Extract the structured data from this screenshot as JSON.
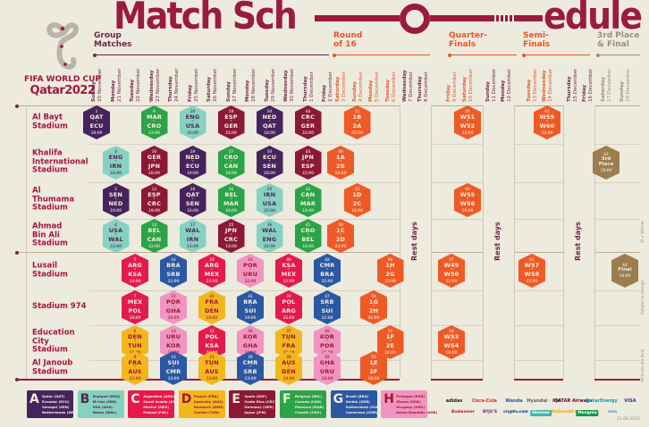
{
  "title": {
    "left": "Match Sch",
    "right": "edule"
  },
  "logo": {
    "line1": "FIFA WORLD CUP",
    "line2": "Qatar2022"
  },
  "phases": [
    {
      "id": "group",
      "lines": "Group\nMatches"
    },
    {
      "id": "r16",
      "lines": "Round\nof 16"
    },
    {
      "id": "qf",
      "lines": "Quarter-\nFinals"
    },
    {
      "id": "sf",
      "lines": "Semi-\nFinals"
    },
    {
      "id": "f3",
      "lines": "3rd Place\n& Final"
    }
  ],
  "columns": [
    {
      "day": "Sunday",
      "date": "20 November",
      "phase": "group"
    },
    {
      "day": "Monday",
      "date": "21 November",
      "phase": "group"
    },
    {
      "day": "Tuesday",
      "date": "22 November",
      "phase": "group"
    },
    {
      "day": "Wednesday",
      "date": "23 November",
      "phase": "group"
    },
    {
      "day": "Thursday",
      "date": "24 November",
      "phase": "group"
    },
    {
      "day": "Friday",
      "date": "25 November",
      "phase": "group"
    },
    {
      "day": "Saturday",
      "date": "26 November",
      "phase": "group"
    },
    {
      "day": "Sunday",
      "date": "27 November",
      "phase": "group"
    },
    {
      "day": "Monday",
      "date": "28 November",
      "phase": "group"
    },
    {
      "day": "Tuesday",
      "date": "29 November",
      "phase": "group"
    },
    {
      "day": "Wednesday",
      "date": "30 November",
      "phase": "group"
    },
    {
      "day": "Thursday",
      "date": "1 December",
      "phase": "group"
    },
    {
      "day": "Friday",
      "date": "2 December",
      "phase": "group"
    },
    {
      "day": "Saturday",
      "date": "3 December",
      "phase": "r16"
    },
    {
      "day": "Sunday",
      "date": "4 December",
      "phase": "r16"
    },
    {
      "day": "Monday",
      "date": "5 December",
      "phase": "r16"
    },
    {
      "day": "Tuesday",
      "date": "6 December",
      "phase": "r16"
    },
    {
      "day": "Wednesday",
      "date": "7 December",
      "phase": "rest"
    },
    {
      "day": "Thursday",
      "date": "8 December",
      "phase": "rest"
    },
    {
      "day": "Friday",
      "date": "9 December",
      "phase": "qf"
    },
    {
      "day": "Saturday",
      "date": "10 December",
      "phase": "qf"
    },
    {
      "day": "Sunday",
      "date": "11 December",
      "phase": "rest"
    },
    {
      "day": "Monday",
      "date": "12 December",
      "phase": "rest"
    },
    {
      "day": "Tuesday",
      "date": "13 December",
      "phase": "sf"
    },
    {
      "day": "Wednesday",
      "date": "14 December",
      "phase": "sf"
    },
    {
      "day": "Thursday",
      "date": "15 December",
      "phase": "rest"
    },
    {
      "day": "Friday",
      "date": "16 December",
      "phase": "rest"
    },
    {
      "day": "Saturday",
      "date": "17 December",
      "phase": "final"
    },
    {
      "day": "Sunday",
      "date": "18 December",
      "phase": "final"
    }
  ],
  "stadiums": [
    {
      "lines": "Al Bayt\nStadium"
    },
    {
      "lines": "Khalifa\nInternational\nStadium"
    },
    {
      "lines": "Al\nThumama\nStadium"
    },
    {
      "lines": "Ahmad\nBin Ali\nStadium"
    },
    {
      "lines": "Lusail\nStadium"
    },
    {
      "lines": "Stadium 974"
    },
    {
      "lines": "Education\nCity\nStadium"
    },
    {
      "lines": "Al Janoub\nStadium"
    }
  ],
  "badge_vs": "v",
  "matches": [
    [
      0,
      1,
      "1",
      "QAT",
      "ECU",
      "A",
      "19:00"
    ],
    [
      0,
      4,
      "9",
      "MAR",
      "CRO",
      "F",
      "13:00"
    ],
    [
      0,
      6,
      "20",
      "ENG",
      "USA",
      "B",
      "22:00"
    ],
    [
      0,
      8,
      "28",
      "ESP",
      "GER",
      "E",
      "22:00"
    ],
    [
      0,
      10,
      "34",
      "NED",
      "QAT",
      "A",
      "18:00"
    ],
    [
      0,
      12,
      "44",
      "CRC",
      "GER",
      "E",
      "22:00"
    ],
    [
      0,
      15,
      "51",
      "1B",
      "2A",
      "K",
      "22:00"
    ],
    [
      0,
      21,
      "59",
      "W51",
      "W52",
      "K",
      "22:00"
    ],
    [
      0,
      25,
      "62",
      "W59",
      "W60",
      "K",
      "22:00"
    ],
    [
      1,
      2,
      "3",
      "ENG",
      "IRN",
      "B",
      "16:00"
    ],
    [
      1,
      4,
      "10",
      "GER",
      "JPN",
      "E",
      "16:00"
    ],
    [
      1,
      6,
      "19",
      "NED",
      "ECU",
      "A",
      "19:00"
    ],
    [
      1,
      8,
      "27",
      "CRO",
      "CAN",
      "F",
      "19:00"
    ],
    [
      1,
      10,
      "33",
      "ECU",
      "SEN",
      "A",
      "18:00"
    ],
    [
      1,
      12,
      "43",
      "JPN",
      "ESP",
      "E",
      "22:00"
    ],
    [
      1,
      14,
      "49",
      "1A",
      "2B",
      "K",
      "18:00"
    ],
    [
      1,
      28,
      "63",
      "3rd Place",
      null,
      "BR",
      "18:00"
    ],
    [
      2,
      2,
      "2",
      "SEN",
      "NED",
      "A",
      "19:00"
    ],
    [
      2,
      4,
      "11",
      "ESP",
      "CRC",
      "E",
      "19:00"
    ],
    [
      2,
      6,
      "18",
      "QAT",
      "SEN",
      "A",
      "16:00"
    ],
    [
      2,
      8,
      "26",
      "BEL",
      "MAR",
      "F",
      "16:00"
    ],
    [
      2,
      10,
      "35",
      "IRN",
      "USA",
      "B",
      "22:00"
    ],
    [
      2,
      12,
      "42",
      "CAN",
      "MAR",
      "F",
      "18:00"
    ],
    [
      2,
      15,
      "52",
      "1D",
      "2C",
      "K",
      "18:00"
    ],
    [
      2,
      21,
      "60",
      "W55",
      "W56",
      "K",
      "18:00"
    ],
    [
      3,
      2,
      "4",
      "USA",
      "WAL",
      "B",
      "22:00"
    ],
    [
      3,
      4,
      "12",
      "BEL",
      "CAN",
      "F",
      "22:00"
    ],
    [
      3,
      6,
      "17",
      "WAL",
      "IRN",
      "B",
      "13:00"
    ],
    [
      3,
      8,
      "25",
      "JPN",
      "CRC",
      "E",
      "13:00"
    ],
    [
      3,
      10,
      "36",
      "WAL",
      "ENG",
      "B",
      "22:00"
    ],
    [
      3,
      12,
      "41",
      "CRO",
      "BEL",
      "F",
      "18:00"
    ],
    [
      3,
      14,
      "50",
      "1C",
      "2D",
      "K",
      "22:00"
    ],
    [
      4,
      3,
      "5",
      "ARG",
      "KSA",
      "C",
      "13:00"
    ],
    [
      4,
      5,
      "16",
      "BRA",
      "SRB",
      "G",
      "22:00"
    ],
    [
      4,
      7,
      "24",
      "ARG",
      "MEX",
      "C",
      "22:00"
    ],
    [
      4,
      9,
      "32",
      "POR",
      "URU",
      "H",
      "22:00"
    ],
    [
      4,
      11,
      "40",
      "KSA",
      "MEX",
      "C",
      "22:00"
    ],
    [
      4,
      13,
      "48",
      "CMR",
      "BRA",
      "G",
      "22:00"
    ],
    [
      4,
      17,
      "56",
      "1H",
      "2G",
      "K",
      "22:00"
    ],
    [
      4,
      20,
      "57",
      "W49",
      "W50",
      "K",
      "22:00"
    ],
    [
      4,
      24,
      "61",
      "W57",
      "W58",
      "K",
      "22:00"
    ],
    [
      4,
      29,
      "64",
      "Final",
      null,
      "BR",
      "18:00"
    ],
    [
      5,
      3,
      "7",
      "MEX",
      "POL",
      "C",
      "19:00"
    ],
    [
      5,
      5,
      "15",
      "POR",
      "GHA",
      "H",
      "19:00"
    ],
    [
      5,
      7,
      "23",
      "FRA",
      "DEN",
      "D",
      "19:00"
    ],
    [
      5,
      9,
      "31",
      "BRA",
      "SUI",
      "G",
      "19:00"
    ],
    [
      5,
      11,
      "39",
      "POL",
      "ARG",
      "C",
      "22:00"
    ],
    [
      5,
      13,
      "47",
      "SRB",
      "SUI",
      "G",
      "22:00"
    ],
    [
      5,
      16,
      "54",
      "1G",
      "2H",
      "K",
      "22:00"
    ],
    [
      6,
      3,
      "6",
      "DEN",
      "TUN",
      "D",
      "16:00"
    ],
    [
      6,
      5,
      "14",
      "URU",
      "KOR",
      "H",
      "16:00"
    ],
    [
      6,
      7,
      "22",
      "POL",
      "KSA",
      "C",
      "16:00"
    ],
    [
      6,
      9,
      "30",
      "KOR",
      "GHA",
      "H",
      "16:00"
    ],
    [
      6,
      11,
      "37",
      "TUN",
      "FRA",
      "D",
      "18:00"
    ],
    [
      6,
      13,
      "46",
      "KOR",
      "POR",
      "H",
      "18:00"
    ],
    [
      6,
      17,
      "55",
      "1F",
      "2E",
      "K",
      "18:00"
    ],
    [
      6,
      20,
      "58",
      "W53",
      "W54",
      "K",
      "18:00"
    ],
    [
      7,
      3,
      "8",
      "FRA",
      "AUS",
      "D",
      "22:00"
    ],
    [
      7,
      5,
      "13",
      "SUI",
      "CMR",
      "G",
      "13:00"
    ],
    [
      7,
      7,
      "21",
      "TUN",
      "AUS",
      "D",
      "13:00"
    ],
    [
      7,
      9,
      "29",
      "CMR",
      "SRB",
      "G",
      "13:00"
    ],
    [
      7,
      11,
      "38",
      "AUS",
      "DEN",
      "D",
      "18:00"
    ],
    [
      7,
      13,
      "45",
      "GHA",
      "URU",
      "H",
      "18:00"
    ],
    [
      7,
      16,
      "53",
      "1E",
      "2F",
      "K",
      "18:00"
    ]
  ],
  "legend": [
    {
      "letter": "A",
      "teams": [
        "Qatar (QAT)",
        "Ecuador (ECU)",
        "Senegal (SEN)",
        "Netherlands (NED)"
      ]
    },
    {
      "letter": "B",
      "teams": [
        "England (ENG)",
        "IR Iran (IRN)",
        "USA (USA)",
        "Wales (WAL)"
      ]
    },
    {
      "letter": "C",
      "teams": [
        "Argentina (ARG)",
        "Saudi Arabia (KSA)",
        "Mexico (MEX)",
        "Poland (POL)"
      ]
    },
    {
      "letter": "D",
      "teams": [
        "France (FRA)",
        "Australia (AUS)",
        "Denmark (DEN)",
        "Tunisia (TUN)"
      ]
    },
    {
      "letter": "E",
      "teams": [
        "Spain (ESP)",
        "Costa Rica (CRC)",
        "Germany (GER)",
        "Japan (JPN)"
      ]
    },
    {
      "letter": "F",
      "teams": [
        "Belgium (BEL)",
        "Canada (CAN)",
        "Morocco (MAR)",
        "Croatia (CRO)"
      ]
    },
    {
      "letter": "G",
      "teams": [
        "Brazil (BRA)",
        "Serbia (SRB)",
        "Switzerland (SUI)",
        "Cameroon (CMR)"
      ]
    },
    {
      "letter": "H",
      "teams": [
        "Portugal (POR)",
        "Ghana (GHA)",
        "Uruguay (URU)",
        "Korea Republic (KOR)"
      ]
    }
  ],
  "notes": {
    "rest_days": "Rest days",
    "winner": "W = Winner",
    "subject": "Subject to change",
    "times_note": "All times are local",
    "print_code": "11.08.2022"
  },
  "sponsors": {
    "partners": [
      {
        "label": "adidas",
        "color": "#1a1a1a"
      },
      {
        "label": "Coca-Cola",
        "color": "#e4231c"
      },
      {
        "label": "Wanda",
        "color": "#2456a4"
      },
      {
        "label": "Hyundai · Kia",
        "color": "#5a5a66"
      },
      {
        "label": "QATAR Airways",
        "color": "#5c0632"
      },
      {
        "label": "QatarEnergy",
        "color": "#00a0ae"
      },
      {
        "label": "VISA",
        "color": "#1a3c8f"
      }
    ],
    "secondary": [
      {
        "label": "Budweiser",
        "color": "#c8102e"
      },
      {
        "label": "BYJU'S",
        "color": "#5a2d82"
      },
      {
        "label": "crypto.com",
        "color": "#03316f"
      },
      {
        "label": "Hisense",
        "color": "#45b5aa",
        "boxed": true
      },
      {
        "label": "McDonald's",
        "color": "#e8a800"
      },
      {
        "label": "Mengniu",
        "color": "#13984b",
        "boxed": true
      },
      {
        "label": "vivo",
        "color": "#4286f4"
      }
    ]
  },
  "colors": {
    "background": "#edeade",
    "maroon": "#9a1b3d",
    "plum": "#6f2748",
    "stadium_red": "#a5173e",
    "orange": "#e4582a",
    "olive": "#97907e",
    "knockout": "#ee5a26",
    "bronze": "#9c7e4e",
    "line_tan": "#bfae96",
    "line_light": "#d9d2c0",
    "line_gray": "#cfc9ba",
    "cream_text": "#f5eedd",
    "groups": {
      "A": "#46235d",
      "B": "#85d2c1",
      "C": "#e41a4e",
      "D": "#f3b71e",
      "E": "#8c1838",
      "F": "#2ba449",
      "G": "#2b58a5",
      "H": "#f095c1"
    },
    "group_text": {
      "A": "#f5eedd",
      "B": "#55244f",
      "C": "#f5eedd",
      "D": "#a01631",
      "E": "#f5eedd",
      "F": "#f5eedd",
      "G": "#f5eedd",
      "H": "#a01631"
    }
  }
}
